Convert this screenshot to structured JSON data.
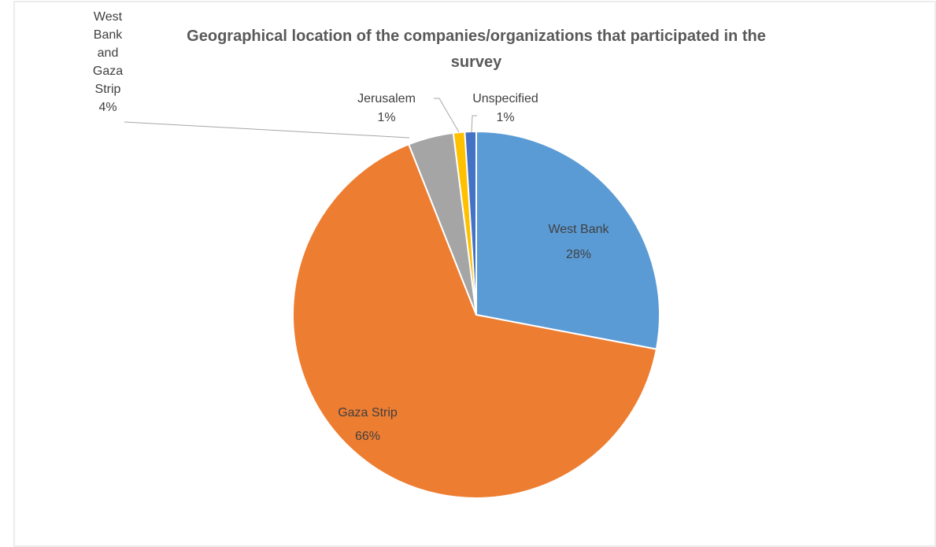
{
  "chart_data": {
    "type": "pie",
    "title": "Geographical location of the companies/organizations that participated in the survey",
    "categories": [
      "West Bank",
      "Gaza Strip",
      "West Bank and Gaza Strip",
      "Jerusalem",
      "Unspecified"
    ],
    "values": [
      28,
      66,
      4,
      1,
      1
    ],
    "value_labels": [
      "28%",
      "66%",
      "4%",
      "1%",
      "1%"
    ],
    "colors": [
      "#5b9bd5",
      "#ed7d31",
      "#a5a5a5",
      "#ffc000",
      "#4472c4"
    ]
  }
}
